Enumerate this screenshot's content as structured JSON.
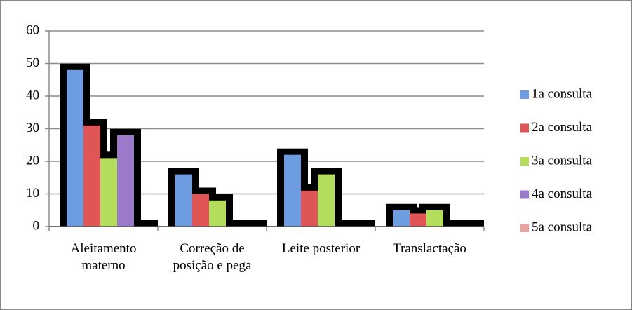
{
  "chart_data": {
    "type": "bar",
    "categories": [
      "Aleitamento materno",
      "Correção de posição e pega",
      "Leite posterior",
      "Translactação"
    ],
    "series": [
      {
        "name": "1a consulta",
        "color": "#6d9de0",
        "values": [
          48,
          16,
          22,
          5
        ]
      },
      {
        "name": "2a consulta",
        "color": "#e05656",
        "values": [
          31,
          10,
          11,
          4
        ]
      },
      {
        "name": "3a consulta",
        "color": "#b5dd5c",
        "values": [
          21,
          8,
          16,
          5
        ]
      },
      {
        "name": "4a consulta",
        "color": "#9b7bc9",
        "values": [
          28,
          0,
          0,
          0
        ]
      },
      {
        "name": "5a consulta",
        "color": "#e8a3a3",
        "values": [
          0,
          0,
          0,
          0
        ]
      }
    ],
    "ylim": [
      0,
      60
    ],
    "yticks": [
      0,
      10,
      20,
      30,
      40,
      50,
      60
    ],
    "grid": true,
    "legend": "right"
  }
}
